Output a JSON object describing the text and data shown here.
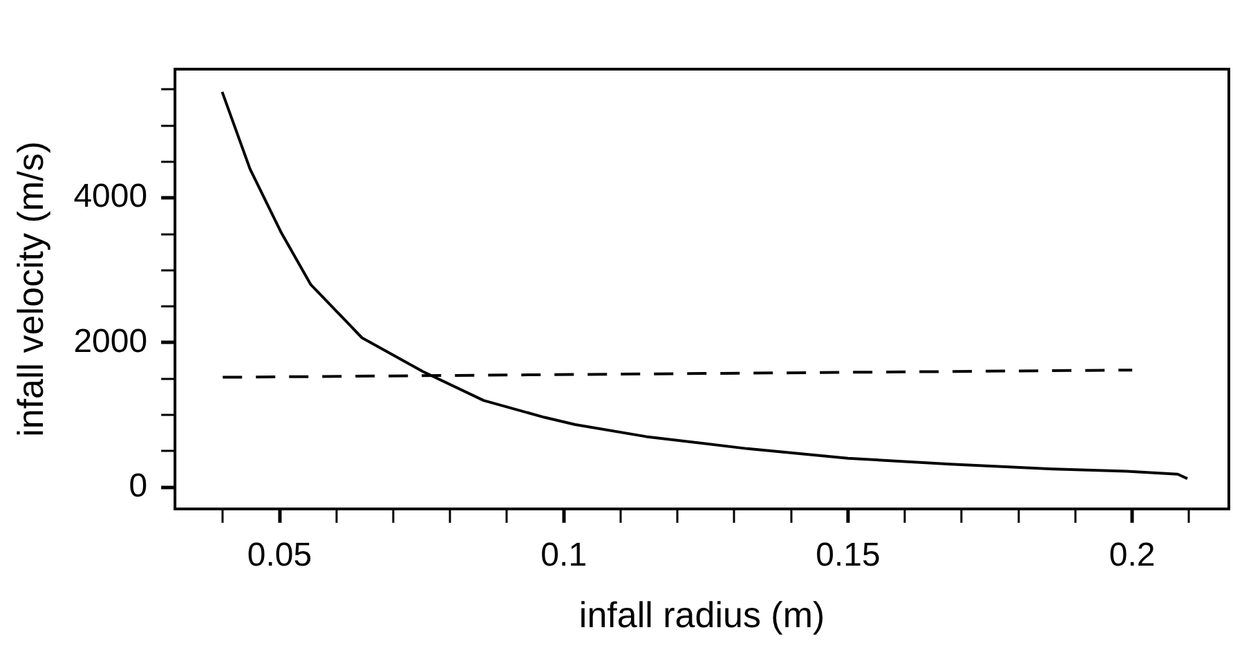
{
  "chart_data": {
    "type": "line",
    "xlabel": "infall radius (m)",
    "ylabel": "infall velocity (m/s)",
    "xlim": [
      0.0316,
      0.217
    ],
    "ylim": [
      -300,
      5780
    ],
    "xticks": [
      {
        "value": 0.04,
        "label": null
      },
      0.05,
      {
        "value": 0.06,
        "label": null
      },
      {
        "value": 0.07,
        "label": null
      },
      {
        "value": 0.08,
        "label": null
      },
      {
        "value": 0.09,
        "label": null
      },
      0.1,
      {
        "value": 0.11,
        "label": null
      },
      {
        "value": 0.12,
        "label": null
      },
      {
        "value": 0.13,
        "label": null
      },
      {
        "value": 0.14,
        "label": null
      },
      0.15,
      {
        "value": 0.16,
        "label": null
      },
      {
        "value": 0.17,
        "label": null
      },
      {
        "value": 0.18,
        "label": null
      },
      {
        "value": 0.19,
        "label": null
      },
      0.2,
      {
        "value": 0.21,
        "label": null
      }
    ],
    "yticks": [
      0,
      {
        "value": 500,
        "label": null
      },
      {
        "value": 1000,
        "label": null
      },
      {
        "value": 1500,
        "label": null
      },
      2000,
      {
        "value": 2500,
        "label": null
      },
      {
        "value": 3000,
        "label": null
      },
      {
        "value": 3500,
        "label": null
      },
      4000,
      {
        "value": 4500,
        "label": null
      },
      {
        "value": 5000,
        "label": null
      },
      {
        "value": 5500,
        "label": null
      }
    ],
    "grid": false,
    "legend": false,
    "marker": "none",
    "series": [
      {
        "color": "#000000",
        "line_style": "solid",
        "x": [
          0.0399,
          0.0448,
          0.0502,
          0.0555,
          0.0645,
          0.0752,
          0.0859,
          0.0966,
          0.102,
          0.1145,
          0.1323,
          0.15,
          0.168,
          0.186,
          0.199,
          0.208,
          0.2097
        ],
        "values": [
          5466,
          4400,
          3534,
          2800,
          2066,
          1600,
          1200,
          966,
          866,
          700,
          533,
          400,
          320,
          253,
          220,
          180,
          120
        ]
      },
      {
        "color": "#000000",
        "line_style": "dashed",
        "x": [
          0.04,
          0.2
        ],
        "values": [
          1520,
          1620
        ]
      }
    ]
  }
}
